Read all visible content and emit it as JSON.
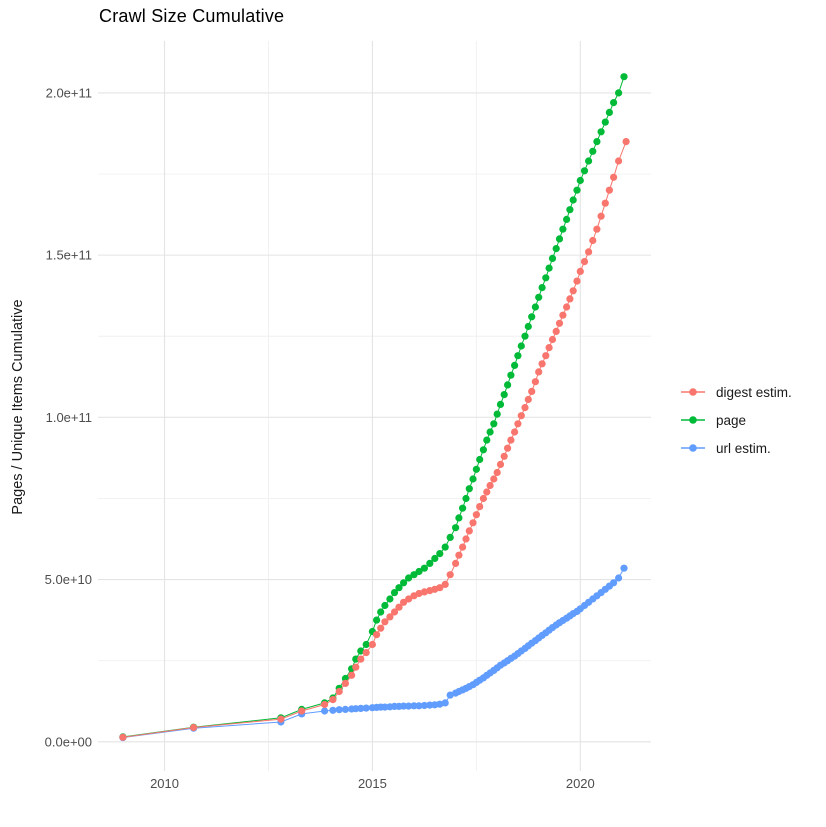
{
  "chart_data": {
    "type": "line",
    "title": "Crawl Size Cumulative",
    "xlabel": "",
    "ylabel": "Pages / Unique Items Cumulative",
    "legend_position": "right",
    "grid": "on",
    "x_axis": {
      "range": [
        2008.4,
        2021.7
      ],
      "ticks": [
        {
          "value": 2010,
          "label": "2010"
        },
        {
          "value": 2015,
          "label": "2015"
        },
        {
          "value": 2020,
          "label": "2020"
        }
      ],
      "minor": [
        2012.5,
        2017.5
      ]
    },
    "y_axis": {
      "range": [
        -9000000000.0,
        216000000000.0
      ],
      "ticks": [
        {
          "value": 0,
          "label": "0.0e+00"
        },
        {
          "value": 50000000000.0,
          "label": "5.0e+10"
        },
        {
          "value": 100000000000.0,
          "label": "1.0e+11"
        },
        {
          "value": 150000000000.0,
          "label": "1.5e+11"
        },
        {
          "value": 200000000000.0,
          "label": "2.0e+11"
        }
      ],
      "minor": [
        25000000000.0,
        75000000000.0,
        125000000000.0,
        175000000000.0
      ]
    },
    "series": [
      {
        "name": "digest estim.",
        "color": "#F8766D",
        "points": [
          [
            2009.0,
            1400000000.0
          ],
          [
            2010.7,
            4400000000.0
          ],
          [
            2012.8,
            7000000000.0
          ],
          [
            2013.3,
            9500000000.0
          ],
          [
            2013.85,
            11500000000.0
          ],
          [
            2014.05,
            13000000000.0
          ],
          [
            2014.2,
            15500000000.0
          ],
          [
            2014.35,
            18000000000.0
          ],
          [
            2014.5,
            20500000000.0
          ],
          [
            2014.6,
            23000000000.0
          ],
          [
            2014.72,
            25500000000.0
          ],
          [
            2014.85,
            27500000000.0
          ],
          [
            2015.0,
            30000000000.0
          ],
          [
            2015.1,
            33000000000.0
          ],
          [
            2015.2,
            35000000000.0
          ],
          [
            2015.3,
            37000000000.0
          ],
          [
            2015.42,
            38500000000.0
          ],
          [
            2015.53,
            40000000000.0
          ],
          [
            2015.64,
            41500000000.0
          ],
          [
            2015.75,
            43000000000.0
          ],
          [
            2015.87,
            44000000000.0
          ],
          [
            2016.0,
            45000000000.0
          ],
          [
            2016.12,
            45700000000.0
          ],
          [
            2016.25,
            46200000000.0
          ],
          [
            2016.38,
            46600000000.0
          ],
          [
            2016.5,
            47000000000.0
          ],
          [
            2016.62,
            47500000000.0
          ],
          [
            2016.75,
            48500000000.0
          ],
          [
            2016.87,
            51500000000.0
          ],
          [
            2017.0,
            55000000000.0
          ],
          [
            2017.08,
            57500000000.0
          ],
          [
            2017.17,
            60000000000.0
          ],
          [
            2017.25,
            62500000000.0
          ],
          [
            2017.33,
            65000000000.0
          ],
          [
            2017.42,
            67500000000.0
          ],
          [
            2017.5,
            70000000000.0
          ],
          [
            2017.58,
            72500000000.0
          ],
          [
            2017.67,
            75000000000.0
          ],
          [
            2017.75,
            77000000000.0
          ],
          [
            2017.83,
            79000000000.0
          ],
          [
            2017.92,
            81000000000.0
          ],
          [
            2018.0,
            83000000000.0
          ],
          [
            2018.08,
            85500000000.0
          ],
          [
            2018.17,
            88000000000.0
          ],
          [
            2018.25,
            90500000000.0
          ],
          [
            2018.33,
            93000000000.0
          ],
          [
            2018.42,
            95500000000.0
          ],
          [
            2018.5,
            98000000000.0
          ],
          [
            2018.58,
            100500000000.0
          ],
          [
            2018.67,
            103000000000.0
          ],
          [
            2018.75,
            105500000000.0
          ],
          [
            2018.83,
            108000000000.0
          ],
          [
            2018.92,
            111000000000.0
          ],
          [
            2019.0,
            114000000000.0
          ],
          [
            2019.08,
            116500000000.0
          ],
          [
            2019.17,
            119000000000.0
          ],
          [
            2019.25,
            121500000000.0
          ],
          [
            2019.33,
            124000000000.0
          ],
          [
            2019.42,
            126500000000.0
          ],
          [
            2019.5,
            129000000000.0
          ],
          [
            2019.58,
            131500000000.0
          ],
          [
            2019.67,
            134000000000.0
          ],
          [
            2019.75,
            136500000000.0
          ],
          [
            2019.83,
            139000000000.0
          ],
          [
            2019.92,
            142000000000.0
          ],
          [
            2020.0,
            145000000000.0
          ],
          [
            2020.1,
            148000000000.0
          ],
          [
            2020.2,
            151000000000.0
          ],
          [
            2020.3,
            154500000000.0
          ],
          [
            2020.4,
            158000000000.0
          ],
          [
            2020.5,
            162000000000.0
          ],
          [
            2020.6,
            166000000000.0
          ],
          [
            2020.7,
            170000000000.0
          ],
          [
            2020.8,
            174000000000.0
          ],
          [
            2020.92,
            179000000000.0
          ],
          [
            2021.1,
            185000000000.0
          ]
        ]
      },
      {
        "name": "page",
        "color": "#00BA38",
        "points": [
          [
            2009.0,
            1500000000.0
          ],
          [
            2010.7,
            4500000000.0
          ],
          [
            2012.8,
            7400000000.0
          ],
          [
            2013.3,
            10000000000.0
          ],
          [
            2013.85,
            12000000000.0
          ],
          [
            2014.05,
            13500000000.0
          ],
          [
            2014.2,
            16500000000.0
          ],
          [
            2014.35,
            19500000000.0
          ],
          [
            2014.5,
            22500000000.0
          ],
          [
            2014.6,
            25500000000.0
          ],
          [
            2014.72,
            28000000000.0
          ],
          [
            2014.85,
            30000000000.0
          ],
          [
            2015.0,
            34000000000.0
          ],
          [
            2015.1,
            37500000000.0
          ],
          [
            2015.2,
            40000000000.0
          ],
          [
            2015.3,
            42000000000.0
          ],
          [
            2015.42,
            44000000000.0
          ],
          [
            2015.53,
            46000000000.0
          ],
          [
            2015.64,
            47500000000.0
          ],
          [
            2015.75,
            49000000000.0
          ],
          [
            2015.87,
            50500000000.0
          ],
          [
            2016.0,
            51500000000.0
          ],
          [
            2016.12,
            52500000000.0
          ],
          [
            2016.25,
            53500000000.0
          ],
          [
            2016.38,
            55000000000.0
          ],
          [
            2016.5,
            56500000000.0
          ],
          [
            2016.62,
            58000000000.0
          ],
          [
            2016.75,
            60000000000.0
          ],
          [
            2016.87,
            63000000000.0
          ],
          [
            2017.0,
            66000000000.0
          ],
          [
            2017.08,
            69000000000.0
          ],
          [
            2017.17,
            72000000000.0
          ],
          [
            2017.25,
            75000000000.0
          ],
          [
            2017.33,
            78000000000.0
          ],
          [
            2017.42,
            81000000000.0
          ],
          [
            2017.5,
            84000000000.0
          ],
          [
            2017.58,
            87000000000.0
          ],
          [
            2017.67,
            90000000000.0
          ],
          [
            2017.75,
            93000000000.0
          ],
          [
            2017.83,
            95500000000.0
          ],
          [
            2017.92,
            98000000000.0
          ],
          [
            2018.0,
            101000000000.0
          ],
          [
            2018.08,
            104000000000.0
          ],
          [
            2018.17,
            107000000000.0
          ],
          [
            2018.25,
            110000000000.0
          ],
          [
            2018.33,
            113000000000.0
          ],
          [
            2018.42,
            116000000000.0
          ],
          [
            2018.5,
            119000000000.0
          ],
          [
            2018.58,
            122000000000.0
          ],
          [
            2018.67,
            125000000000.0
          ],
          [
            2018.75,
            128000000000.0
          ],
          [
            2018.83,
            131000000000.0
          ],
          [
            2018.92,
            134000000000.0
          ],
          [
            2019.0,
            137000000000.0
          ],
          [
            2019.08,
            140000000000.0
          ],
          [
            2019.17,
            143000000000.0
          ],
          [
            2019.25,
            146000000000.0
          ],
          [
            2019.33,
            149000000000.0
          ],
          [
            2019.42,
            152000000000.0
          ],
          [
            2019.5,
            155000000000.0
          ],
          [
            2019.58,
            158000000000.0
          ],
          [
            2019.67,
            161000000000.0
          ],
          [
            2019.75,
            164000000000.0
          ],
          [
            2019.83,
            167000000000.0
          ],
          [
            2019.92,
            170000000000.0
          ],
          [
            2020.0,
            173000000000.0
          ],
          [
            2020.1,
            176000000000.0
          ],
          [
            2020.2,
            179000000000.0
          ],
          [
            2020.3,
            182000000000.0
          ],
          [
            2020.4,
            185000000000.0
          ],
          [
            2020.5,
            188000000000.0
          ],
          [
            2020.6,
            191000000000.0
          ],
          [
            2020.7,
            194000000000.0
          ],
          [
            2020.8,
            197000000000.0
          ],
          [
            2020.92,
            200000000000.0
          ],
          [
            2021.05,
            205000000000.0
          ]
        ]
      },
      {
        "name": "url estim.",
        "color": "#619CFF",
        "points": [
          [
            2009.0,
            1300000000.0
          ],
          [
            2010.7,
            4200000000.0
          ],
          [
            2012.8,
            6100000000.0
          ],
          [
            2013.3,
            8600000000.0
          ],
          [
            2013.85,
            9500000000.0
          ],
          [
            2014.05,
            9700000000.0
          ],
          [
            2014.2,
            9900000000.0
          ],
          [
            2014.35,
            10000000000.0
          ],
          [
            2014.5,
            10100000000.0
          ],
          [
            2014.6,
            10200000000.0
          ],
          [
            2014.72,
            10300000000.0
          ],
          [
            2014.85,
            10400000000.0
          ],
          [
            2015.0,
            10500000000.0
          ],
          [
            2015.1,
            10600000000.0
          ],
          [
            2015.2,
            10700000000.0
          ],
          [
            2015.3,
            10700000000.0
          ],
          [
            2015.42,
            10800000000.0
          ],
          [
            2015.53,
            10900000000.0
          ],
          [
            2015.64,
            10900000000.0
          ],
          [
            2015.75,
            11000000000.0
          ],
          [
            2015.87,
            11000000000.0
          ],
          [
            2016.0,
            11100000000.0
          ],
          [
            2016.12,
            11100000000.0
          ],
          [
            2016.25,
            11200000000.0
          ],
          [
            2016.38,
            11300000000.0
          ],
          [
            2016.5,
            11400000000.0
          ],
          [
            2016.62,
            11600000000.0
          ],
          [
            2016.75,
            12000000000.0
          ],
          [
            2016.87,
            14400000000.0
          ],
          [
            2017.0,
            15000000000.0
          ],
          [
            2017.08,
            15500000000.0
          ],
          [
            2017.17,
            16000000000.0
          ],
          [
            2017.25,
            16500000000.0
          ],
          [
            2017.33,
            17000000000.0
          ],
          [
            2017.42,
            17600000000.0
          ],
          [
            2017.5,
            18300000000.0
          ],
          [
            2017.58,
            19000000000.0
          ],
          [
            2017.67,
            19700000000.0
          ],
          [
            2017.75,
            20500000000.0
          ],
          [
            2017.83,
            21200000000.0
          ],
          [
            2017.92,
            22000000000.0
          ],
          [
            2018.0,
            22800000000.0
          ],
          [
            2018.08,
            23600000000.0
          ],
          [
            2018.17,
            24300000000.0
          ],
          [
            2018.25,
            25000000000.0
          ],
          [
            2018.33,
            25700000000.0
          ],
          [
            2018.42,
            26400000000.0
          ],
          [
            2018.5,
            27200000000.0
          ],
          [
            2018.58,
            28000000000.0
          ],
          [
            2018.67,
            28800000000.0
          ],
          [
            2018.75,
            29600000000.0
          ],
          [
            2018.83,
            30400000000.0
          ],
          [
            2018.92,
            31200000000.0
          ],
          [
            2019.0,
            32000000000.0
          ],
          [
            2019.08,
            32800000000.0
          ],
          [
            2019.17,
            33600000000.0
          ],
          [
            2019.25,
            34400000000.0
          ],
          [
            2019.33,
            35200000000.0
          ],
          [
            2019.42,
            36000000000.0
          ],
          [
            2019.5,
            36700000000.0
          ],
          [
            2019.58,
            37400000000.0
          ],
          [
            2019.67,
            38100000000.0
          ],
          [
            2019.75,
            38800000000.0
          ],
          [
            2019.83,
            39500000000.0
          ],
          [
            2019.92,
            40200000000.0
          ],
          [
            2020.0,
            41000000000.0
          ],
          [
            2020.1,
            42000000000.0
          ],
          [
            2020.2,
            43000000000.0
          ],
          [
            2020.3,
            44000000000.0
          ],
          [
            2020.4,
            45000000000.0
          ],
          [
            2020.5,
            46000000000.0
          ],
          [
            2020.6,
            47000000000.0
          ],
          [
            2020.7,
            48000000000.0
          ],
          [
            2020.8,
            49000000000.0
          ],
          [
            2020.92,
            50500000000.0
          ],
          [
            2021.05,
            53500000000.0
          ]
        ]
      }
    ]
  }
}
